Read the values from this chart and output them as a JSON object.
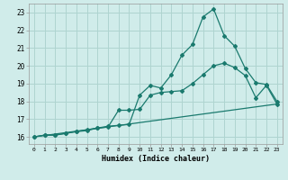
{
  "title": "",
  "xlabel": "Humidex (Indice chaleur)",
  "ylabel": "",
  "bg_color": "#d0ecea",
  "grid_color": "#aed4d0",
  "line_color": "#1a7a6e",
  "x_ticks": [
    0,
    1,
    2,
    3,
    4,
    5,
    6,
    7,
    8,
    9,
    10,
    11,
    12,
    13,
    14,
    15,
    16,
    17,
    18,
    19,
    20,
    21,
    22,
    23
  ],
  "y_ticks": [
    16,
    17,
    18,
    19,
    20,
    21,
    22,
    23
  ],
  "xlim": [
    -0.5,
    23.5
  ],
  "ylim": [
    15.6,
    23.5
  ],
  "series1_x": [
    0,
    1,
    2,
    3,
    4,
    5,
    6,
    7,
    8,
    9,
    10,
    11,
    12,
    13,
    14,
    15,
    16,
    17,
    18,
    19,
    20,
    21,
    22,
    23
  ],
  "series1_y": [
    16.0,
    16.1,
    16.1,
    16.2,
    16.3,
    16.4,
    16.5,
    16.6,
    16.65,
    16.7,
    18.35,
    18.9,
    18.75,
    19.5,
    20.6,
    21.2,
    22.75,
    23.2,
    21.7,
    21.1,
    19.85,
    19.05,
    18.95,
    18.0
  ],
  "series2_x": [
    0,
    1,
    2,
    3,
    4,
    5,
    6,
    7,
    8,
    9,
    10,
    11,
    12,
    13,
    14,
    15,
    16,
    17,
    18,
    19,
    20,
    21,
    22,
    23
  ],
  "series2_y": [
    16.0,
    16.1,
    16.1,
    16.2,
    16.3,
    16.35,
    16.5,
    16.55,
    17.5,
    17.5,
    17.55,
    18.35,
    18.5,
    18.55,
    18.6,
    19.0,
    19.5,
    20.0,
    20.15,
    19.9,
    19.45,
    18.2,
    18.9,
    17.85
  ],
  "series3_x": [
    0,
    23
  ],
  "series3_y": [
    16.0,
    17.85
  ]
}
